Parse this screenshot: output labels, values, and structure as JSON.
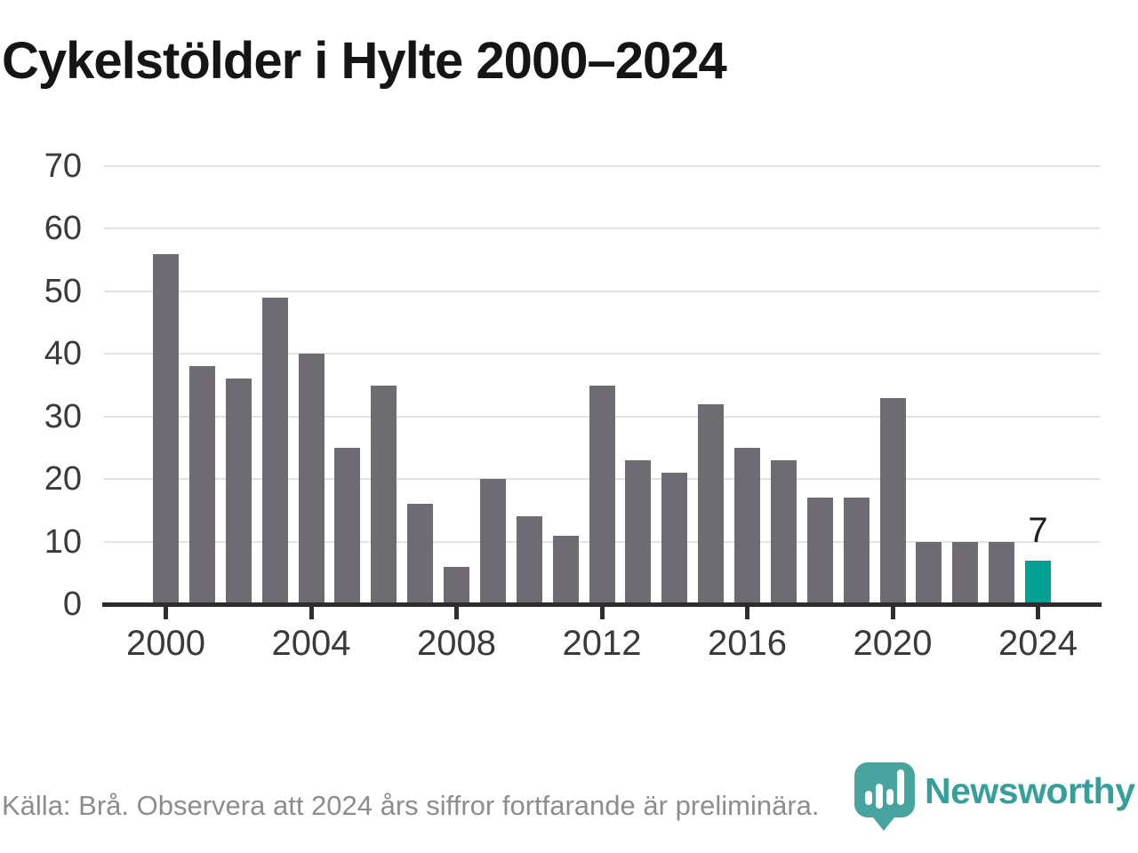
{
  "title": "Cykelstölder i Hylte 2000–2024",
  "chart_data": {
    "type": "bar",
    "title": "Cykelstölder i Hylte 2000–2024",
    "categories": [
      2000,
      2001,
      2002,
      2003,
      2004,
      2005,
      2006,
      2007,
      2008,
      2009,
      2010,
      2011,
      2012,
      2013,
      2014,
      2015,
      2016,
      2017,
      2018,
      2019,
      2020,
      2021,
      2022,
      2023,
      2024
    ],
    "values": [
      56,
      38,
      36,
      49,
      40,
      25,
      35,
      16,
      6,
      20,
      14,
      11,
      35,
      23,
      21,
      32,
      25,
      23,
      17,
      17,
      33,
      10,
      10,
      10,
      7
    ],
    "ylim": [
      0,
      70
    ],
    "yticks": [
      0,
      10,
      20,
      30,
      40,
      50,
      60,
      70
    ],
    "xtick_years": [
      2000,
      2004,
      2008,
      2012,
      2016,
      2020,
      2024
    ],
    "grid": "horizontal",
    "legend": "none",
    "bar_color": "#6e6b73",
    "highlight": {
      "year": 2024,
      "value": 7,
      "data_label": "7",
      "color": "#00a094"
    }
  },
  "footer": {
    "source_note": "Källa: Brå. Observera att 2024 års siffror fortfarande är preliminära.",
    "logo_text": "Newsworthy"
  },
  "colors": {
    "background": "#ffffff",
    "title_text": "#151515",
    "axis_label": "#3a3a3a",
    "gridline": "#e2e2e2",
    "axis_line": "#2d2d2d",
    "bar_default": "#6e6b73",
    "bar_highlight": "#00a094",
    "source_text": "#8d8d8d",
    "logo_teal": "#46a39d",
    "logo_text_teal": "#35a09a"
  }
}
